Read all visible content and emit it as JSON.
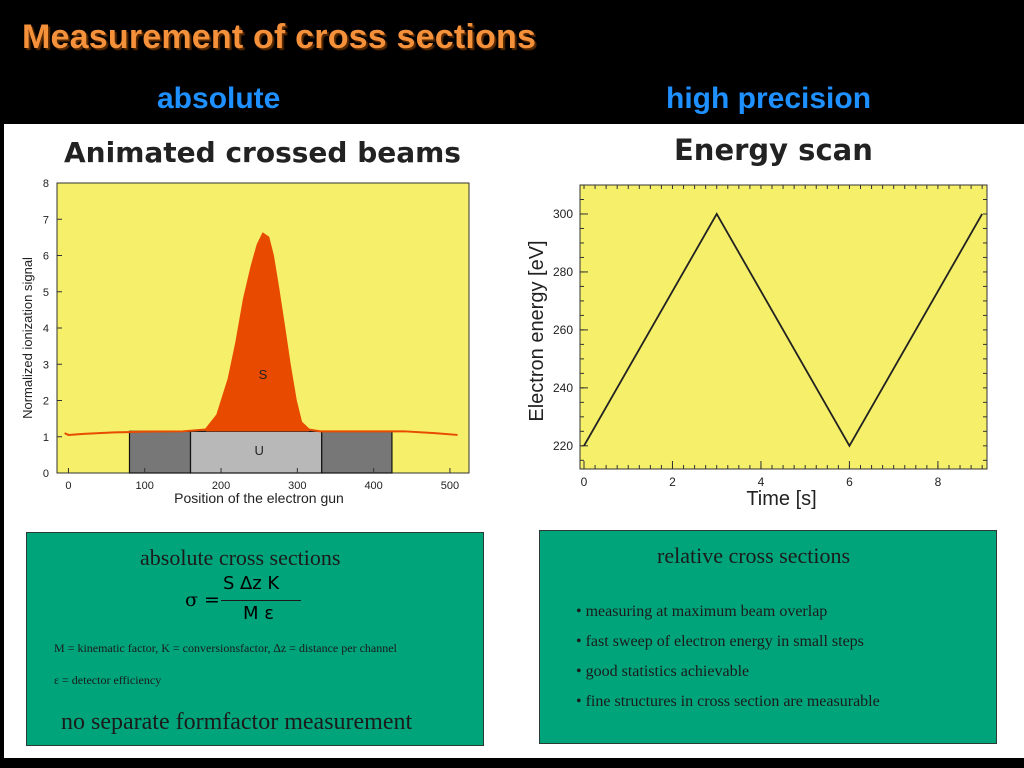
{
  "title": "Measurement of  cross sections",
  "columns": {
    "left": "absolute",
    "right": "high precision"
  },
  "left_chart_title": "Animated crossed beams",
  "right_chart_title": "Energy scan",
  "left_box": {
    "title": "absolute cross sections",
    "formula": {
      "lhs": "σ =",
      "numerator": "S ∆z K",
      "denominator": "M ε"
    },
    "def_line1": "M  =  kinematic factor, K  = conversionsfactor, ∆z  = distance per channel",
    "def_line2": "ε  = detector efficiency",
    "footer": "no separate formfactor measurement"
  },
  "right_box": {
    "title": "relative cross sections",
    "bullets": [
      "• measuring   at maximum beam overlap",
      "• fast sweep of electron energy  in small steps",
      "• good statistics achievable",
      "• fine structures  in cross section are measurable"
    ]
  },
  "chart_data": [
    {
      "type": "area",
      "xlabel": "Position of the electron gun",
      "ylabel": "Normalized ionization signal",
      "xlim": [
        -15,
        525
      ],
      "ylim": [
        0,
        8
      ],
      "xticks": [
        0,
        100,
        200,
        300,
        400,
        500
      ],
      "yticks": [
        0,
        1,
        2,
        3,
        4,
        5,
        6,
        7,
        8
      ],
      "background": "#f5ef6a",
      "signal_color": "#e84a00",
      "annotations": [
        "S",
        "U"
      ],
      "baseline_level": 1.15,
      "signal_points": [
        [
          -5,
          1.1
        ],
        [
          0,
          1.05
        ],
        [
          20,
          1.08
        ],
        [
          60,
          1.12
        ],
        [
          100,
          1.14
        ],
        [
          150,
          1.15
        ],
        [
          180,
          1.2
        ],
        [
          195,
          1.6
        ],
        [
          210,
          2.6
        ],
        [
          220,
          3.6
        ],
        [
          230,
          4.8
        ],
        [
          240,
          5.7
        ],
        [
          248,
          6.3
        ],
        [
          255,
          6.6
        ],
        [
          262,
          6.5
        ],
        [
          268,
          6.0
        ],
        [
          275,
          5.1
        ],
        [
          283,
          4.0
        ],
        [
          290,
          3.0
        ],
        [
          298,
          2.0
        ],
        [
          305,
          1.4
        ],
        [
          315,
          1.2
        ],
        [
          330,
          1.15
        ],
        [
          380,
          1.15
        ],
        [
          440,
          1.15
        ],
        [
          480,
          1.1
        ],
        [
          510,
          1.05
        ]
      ],
      "blocks": [
        {
          "x0": 80,
          "x1": 160,
          "y0": 0,
          "y1": 1.15,
          "color": "#777777"
        },
        {
          "x0": 160,
          "x1": 332,
          "y0": 0,
          "y1": 1.15,
          "color": "#b8b8b8"
        },
        {
          "x0": 332,
          "x1": 424,
          "y0": 0,
          "y1": 1.15,
          "color": "#777777"
        }
      ]
    },
    {
      "type": "line",
      "xlabel": "Time [s]",
      "ylabel": "Electron energy [eV]",
      "xlim": [
        0,
        9.2
      ],
      "ylim": [
        212,
        310
      ],
      "xticks": [
        0,
        2,
        4,
        6,
        8
      ],
      "yticks": [
        220,
        240,
        260,
        280,
        300
      ],
      "background": "#f5ef6a",
      "x": [
        0,
        3,
        6,
        9
      ],
      "y": [
        220,
        300,
        220,
        300
      ]
    }
  ]
}
